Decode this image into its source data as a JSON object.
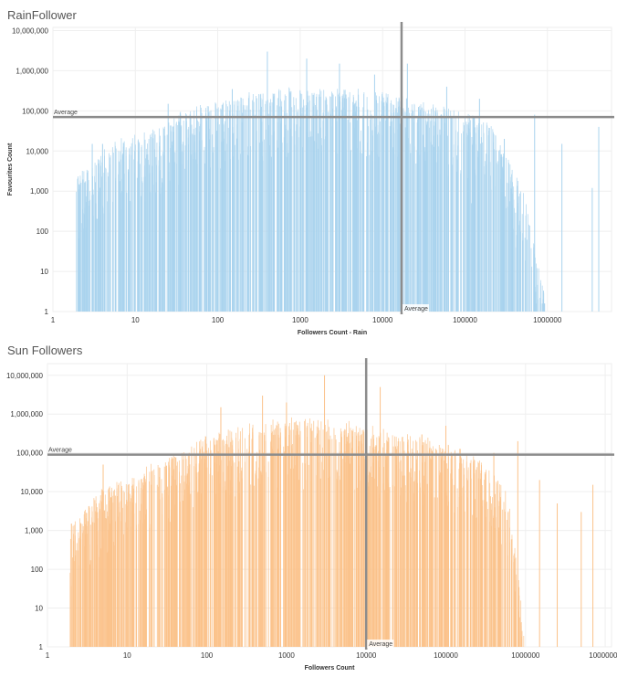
{
  "chart_data": [
    {
      "type": "bar",
      "title": "RainFollower",
      "xlabel": "Followers Count - Rain",
      "ylabel": "Favourites Count",
      "x_scale": "log",
      "y_scale": "log",
      "xlim": [
        1,
        6000000
      ],
      "ylim": [
        1,
        12000000
      ],
      "x_ticks": [
        "1",
        "10",
        "100",
        "1000",
        "10000",
        "100000",
        "1000000"
      ],
      "y_ticks": [
        "1",
        "10",
        "100",
        "1,000",
        "10,000",
        "100,000",
        "1,000,000",
        "10,000,000"
      ],
      "color": "#a9d3ee",
      "grid": true,
      "reference_lines": [
        {
          "axis": "y",
          "value": 70000,
          "label": "Average"
        },
        {
          "axis": "x",
          "value": 17000,
          "label": "Average"
        }
      ],
      "envelope_x": [
        1,
        2,
        5,
        10,
        20,
        30,
        50,
        100,
        300,
        1000,
        3000,
        10000,
        20000,
        50000,
        100000,
        200000,
        300000,
        500000,
        1000000,
        5000000
      ],
      "envelope_y": [
        1,
        2000,
        12000,
        20000,
        30000,
        60000,
        90000,
        150000,
        250000,
        300000,
        300000,
        250000,
        150000,
        100000,
        80000,
        40000,
        8000,
        1000,
        1,
        1
      ],
      "spikes": [
        [
          2,
          2000
        ],
        [
          3,
          15000
        ],
        [
          4,
          15000
        ],
        [
          7,
          8000
        ],
        [
          25,
          150000
        ],
        [
          150,
          350000
        ],
        [
          400,
          3000000
        ],
        [
          1200,
          2000000
        ],
        [
          3000,
          1500000
        ],
        [
          8000,
          800000
        ],
        [
          20000,
          1500000
        ],
        [
          60000,
          400000
        ],
        [
          120000,
          500
        ],
        [
          150000,
          200000
        ],
        [
          300000,
          20000
        ],
        [
          700000,
          80000
        ],
        [
          1500000,
          15000
        ],
        [
          3500000,
          1200
        ],
        [
          4200000,
          40000
        ]
      ]
    },
    {
      "type": "bar",
      "title": "Sun Followers",
      "xlabel": "Followers Count",
      "ylabel": "",
      "x_scale": "log",
      "y_scale": "log",
      "xlim": [
        1,
        12000000
      ],
      "ylim": [
        1,
        20000000
      ],
      "x_ticks": [
        "1",
        "10",
        "100",
        "1000",
        "10000",
        "100000",
        "1000000",
        "10000000"
      ],
      "y_ticks": [
        "1",
        "10",
        "100",
        "1,000",
        "10,000",
        "100,000",
        "1,000,000",
        "10,000,000"
      ],
      "color": "#fbc28a",
      "grid": true,
      "reference_lines": [
        {
          "axis": "y",
          "value": 90000,
          "label": "Average"
        },
        {
          "axis": "x",
          "value": 10000,
          "label": "Average"
        }
      ],
      "envelope_x": [
        1,
        2,
        5,
        10,
        20,
        40,
        100,
        300,
        1000,
        3000,
        10000,
        30000,
        100000,
        300000,
        600000,
        1000000,
        10000000
      ],
      "envelope_y": [
        1,
        1000,
        10000,
        20000,
        40000,
        80000,
        200000,
        400000,
        600000,
        600000,
        400000,
        250000,
        150000,
        50000,
        10000,
        1,
        1
      ],
      "spikes": [
        [
          2,
          1500
        ],
        [
          3,
          800
        ],
        [
          5,
          50000
        ],
        [
          20,
          15000
        ],
        [
          60,
          100000
        ],
        [
          150,
          1500000
        ],
        [
          500,
          3000000
        ],
        [
          1000,
          2000000
        ],
        [
          3000,
          10000000
        ],
        [
          15000,
          5000000
        ],
        [
          50000,
          300000
        ],
        [
          100000,
          500000
        ],
        [
          400000,
          100000
        ],
        [
          800000,
          200000
        ],
        [
          1500000,
          20000
        ],
        [
          2500000,
          5000
        ],
        [
          5000000,
          3000
        ],
        [
          7000000,
          15000
        ]
      ]
    }
  ]
}
